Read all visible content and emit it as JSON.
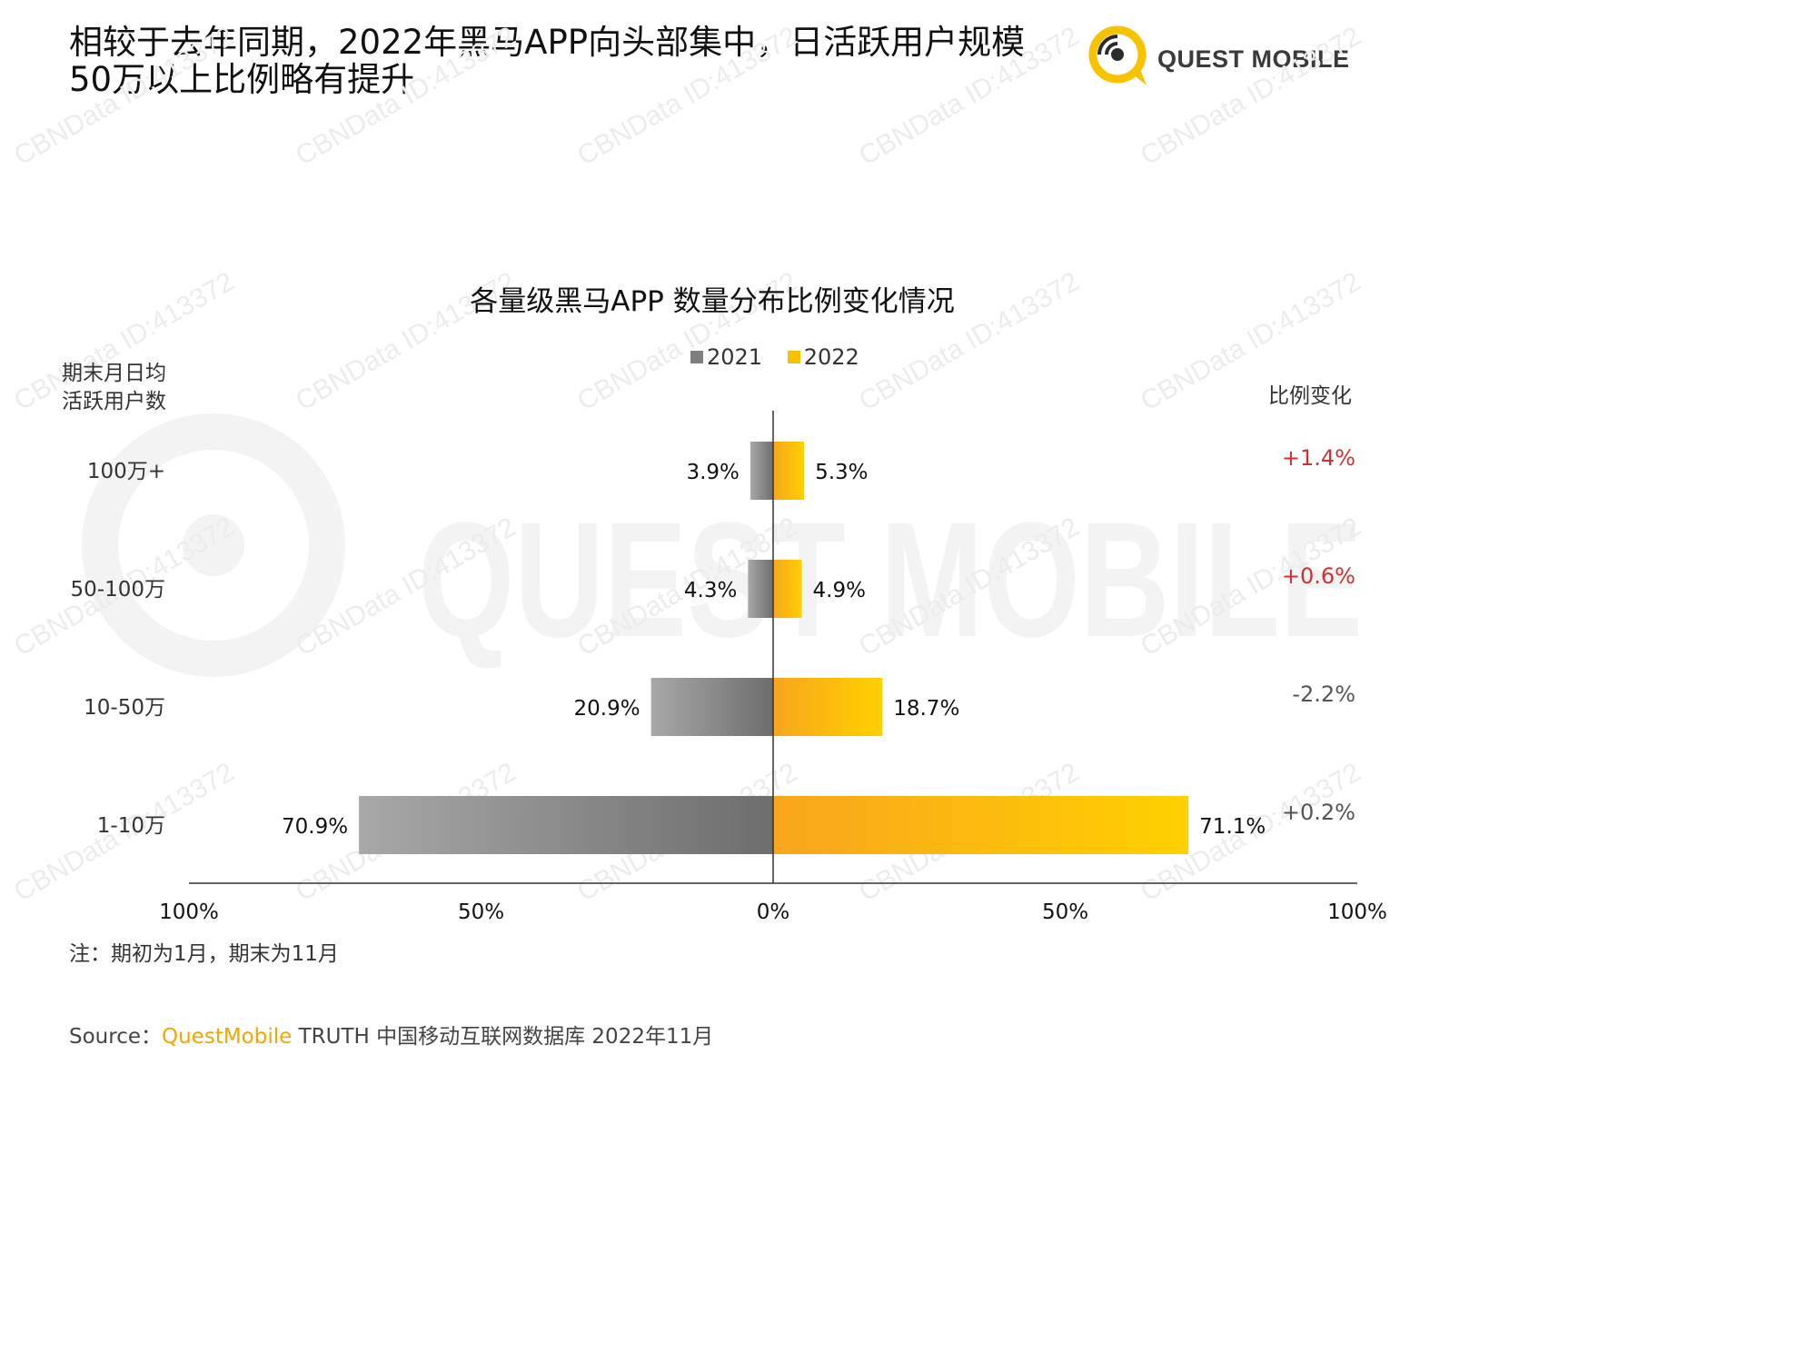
{
  "header": {
    "title_line1": "相较于去年同期，2022年黑马APP向头部集中，日活跃用户规模",
    "title_line2": "50万以上比例略有提升",
    "logo_text": "QUEST MOBILE"
  },
  "watermark": {
    "text": "CBNData ID:413372",
    "logo_text": "QUEST MOBILE"
  },
  "chart_data": {
    "type": "bar",
    "orientation": "horizontal-butterfly",
    "title": "各量级黑马APP 数量分布比例变化情况",
    "ylabel": "期末月日均活跃用户数",
    "ylabel_lines": [
      "期末月日均",
      "活跃用户数"
    ],
    "change_label": "比例变化",
    "categories": [
      "100万+",
      "50-100万",
      "10-50万",
      "1-10万"
    ],
    "series": [
      {
        "name": "2021",
        "values": [
          3.9,
          4.3,
          20.9,
          70.9
        ],
        "labels": [
          "3.9%",
          "4.3%",
          "20.9%",
          "70.9%"
        ],
        "color": "#8a8a8a",
        "side": "left"
      },
      {
        "name": "2022",
        "values": [
          5.3,
          4.9,
          18.7,
          71.1
        ],
        "labels": [
          "5.3%",
          "4.9%",
          "18.7%",
          "71.1%"
        ],
        "color": "#f7b500",
        "side": "right"
      }
    ],
    "changes": [
      "+1.4%",
      "+0.6%",
      "-2.2%",
      "+0.2%"
    ],
    "change_colors": [
      "#d0302f",
      "#d0302f",
      "#555555",
      "#555555"
    ],
    "xlim": [
      -100,
      100
    ],
    "xticks": [
      -100,
      -50,
      0,
      50,
      100
    ],
    "xtick_labels": [
      "100%",
      "50%",
      "0%",
      "50%",
      "100%"
    ],
    "legend_position": "top-center",
    "grid": false
  },
  "footer": {
    "note": "注：期初为1月，期末为11月",
    "source_prefix": "Source：",
    "source_brand": "QuestMobile",
    "source_rest": " TRUTH 中国移动互联网数据库 2022年11月"
  }
}
